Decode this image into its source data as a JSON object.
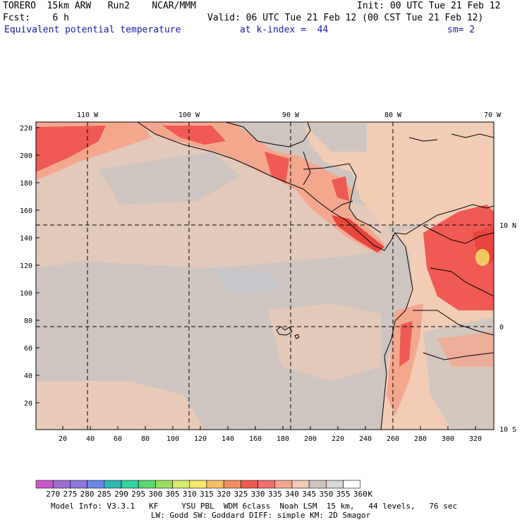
{
  "header": {
    "model": "TORERO  15km ARW   Run2    NCAR/MMM",
    "init": "Init: 00 UTC Tue 21 Feb 12",
    "fcst": "Fcst:    6 h",
    "valid": "Valid: 06 UTC Tue 21 Feb 12 (00 CST Tue 21 Feb 12)",
    "field": "Equivalent potential temperature",
    "level": "at k-index =  44",
    "smooth": "sm= 2"
  },
  "map": {
    "top_lon_labels": [
      "110 W",
      "100 W",
      "90 W",
      "80 W",
      "70 W"
    ],
    "right_lat_labels": [
      "10 N",
      "0",
      "10 S"
    ],
    "left_ticks": [
      "220",
      "200",
      "180",
      "160",
      "140",
      "120",
      "100",
      "80",
      "60",
      "40",
      "20"
    ],
    "bottom_ticks": [
      "20",
      "40",
      "60",
      "80",
      "100",
      "120",
      "140",
      "160",
      "180",
      "200",
      "220",
      "240",
      "260",
      "280",
      "300",
      "320"
    ],
    "colors": {
      "ocean": "#cfc5c0",
      "land_mid": "#f2ccb4",
      "warm": "#f3a88e",
      "hot": "#ef5a55",
      "hotter": "#e8453f",
      "gray_patch": "#c6c6cc",
      "grid": "#000000"
    }
  },
  "colorbar": {
    "labels": [
      "270",
      "275",
      "280",
      "285",
      "290",
      "295",
      "300",
      "305",
      "310",
      "315",
      "320",
      "325",
      "330",
      "335",
      "340",
      "345",
      "350",
      "355",
      "360"
    ],
    "unit": "K",
    "colors": [
      "#c85ac8",
      "#a06ccf",
      "#8c78e0",
      "#6c86e8",
      "#30b8b8",
      "#30d6a0",
      "#5cd870",
      "#9ae060",
      "#d8ec6c",
      "#f8e868",
      "#f4c068",
      "#f09060",
      "#ef5a55",
      "#f07070",
      "#f3a88e",
      "#f2ccb4",
      "#cfc5c0",
      "#d8d8d8",
      "#ffffff"
    ]
  },
  "footer": {
    "line1": "Model Info: V3.3.1   KF     YSU PBL  WDM 6class  Noah LSM  15 km,   44 levels,   76 sec",
    "line2": "LW: Godd SW: Goddard DIFF: simple KM: 2D Smagor"
  }
}
